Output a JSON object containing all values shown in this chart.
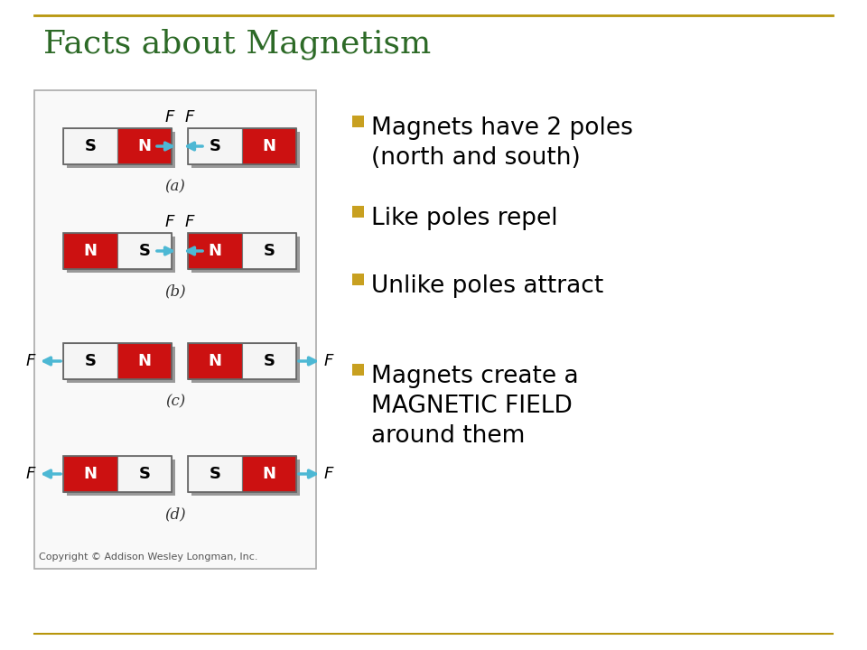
{
  "title": "Facts about Magnetism",
  "title_color": "#2d6a27",
  "title_fontsize": 26,
  "top_line_color": "#b8960c",
  "background_color": "#ffffff",
  "bullet_color": "#c8a020",
  "bullet_points": [
    "Magnets have 2 poles\n(north and south)",
    "Like poles repel",
    "Unlike poles attract",
    "Magnets create a\nMAGNETIC FIELD\naround them"
  ],
  "bullet_fontsize": 19,
  "red_color": "#cc1111",
  "white_color": "#f5f5f5",
  "arrow_color": "#4db8d4",
  "italic_color": "#000000",
  "copyright_text": "Copyright © Addison Wesley Longman, Inc.",
  "diagram_label_color": "#333333",
  "diagram_box_color": "#dddddd",
  "shadow_color": "#999999"
}
